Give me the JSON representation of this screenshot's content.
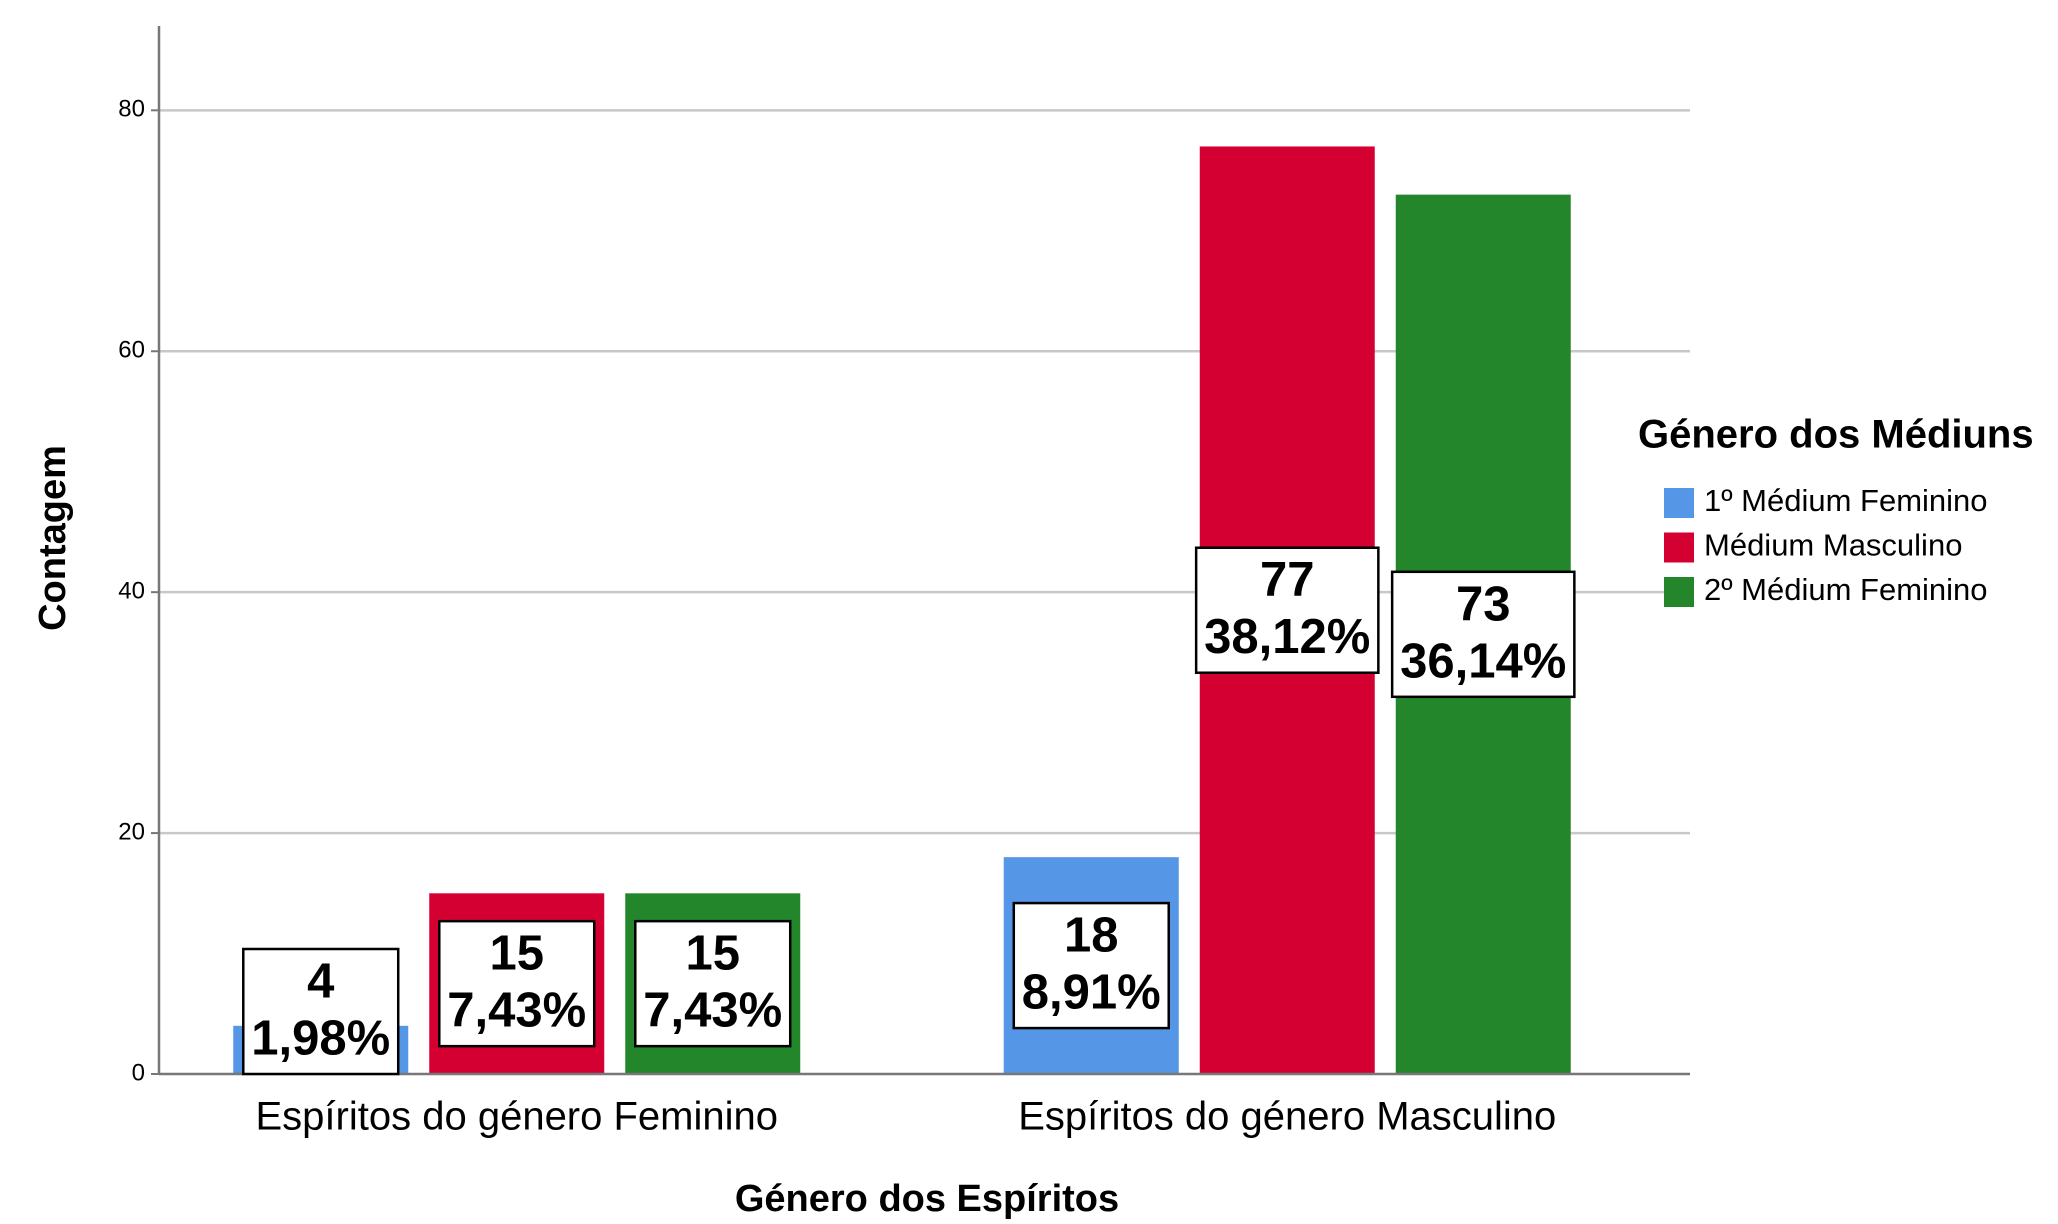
{
  "chart_data": {
    "type": "bar",
    "x_label": "Género dos Espíritos",
    "y_label": "Contagem",
    "legend_title": "Género dos Médiuns",
    "categories": [
      "Espíritos do género Feminino",
      "Espíritos do género Masculino"
    ],
    "series": [
      {
        "name": "1º Médium Feminino",
        "color": "#5596e6",
        "values": [
          4,
          18
        ],
        "percent_labels": [
          "1,98%",
          "8,91%"
        ]
      },
      {
        "name": "Médium Masculino",
        "color": "#d50032",
        "values": [
          15,
          77
        ],
        "percent_labels": [
          "7,43%",
          "38,12%"
        ]
      },
      {
        "name": "2º Médium Feminino",
        "color": "#24862b",
        "values": [
          15,
          73
        ],
        "percent_labels": [
          "7,43%",
          "36,14%"
        ]
      }
    ],
    "ylim": [
      0,
      87
    ],
    "yticks": [
      0,
      20,
      40,
      60,
      80
    ],
    "grid": true,
    "legend": "right"
  }
}
